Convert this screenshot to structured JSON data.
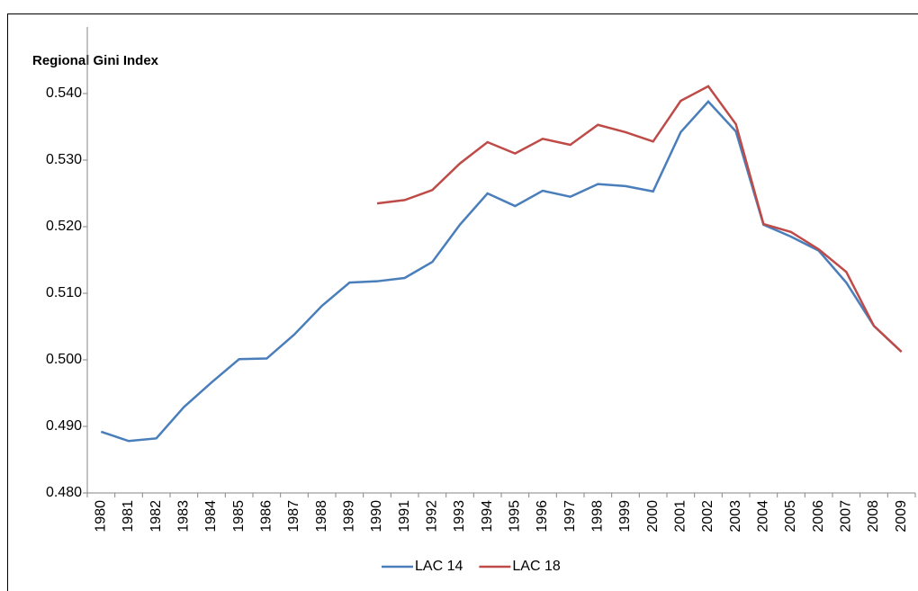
{
  "chart_data": {
    "type": "line",
    "title": "Regional Gini  Index",
    "categories": [
      "1980",
      "1981",
      "1982",
      "1983",
      "1984",
      "1985",
      "1986",
      "1987",
      "1988",
      "1989",
      "1990",
      "1991",
      "1992",
      "1993",
      "1994",
      "1995",
      "1996",
      "1997",
      "1998",
      "1999",
      "2000",
      "2001",
      "2002",
      "2003",
      "2004",
      "2005",
      "2006",
      "2007",
      "2008",
      "2009"
    ],
    "series": [
      {
        "name": "LAC 14",
        "color": "#4a7ebb",
        "values": [
          0.4892,
          0.4878,
          0.4882,
          0.4929,
          0.4966,
          0.5001,
          0.5002,
          0.5038,
          0.5081,
          0.5116,
          0.5118,
          0.5123,
          0.5147,
          0.5203,
          0.525,
          0.5231,
          0.5254,
          0.5245,
          0.5264,
          0.5261,
          0.5253,
          0.5342,
          0.5388,
          0.5343,
          0.5203,
          0.5185,
          0.5164,
          0.5116,
          0.5051,
          0.5012
        ]
      },
      {
        "name": "LAC 18",
        "color": "#be4b48",
        "values": [
          null,
          null,
          null,
          null,
          null,
          null,
          null,
          null,
          null,
          null,
          0.5235,
          0.524,
          0.5255,
          0.5295,
          0.5327,
          0.531,
          0.5332,
          0.5323,
          0.5353,
          0.5342,
          0.5328,
          0.5389,
          0.5411,
          0.5354,
          0.5204,
          0.5192,
          0.5166,
          0.5132,
          0.5051,
          0.5012
        ]
      }
    ],
    "ylim": [
      0.48,
      0.54
    ],
    "yticks": [
      {
        "value": 0.48,
        "label": "0.480"
      },
      {
        "value": 0.49,
        "label": "0.490"
      },
      {
        "value": 0.5,
        "label": "0.500"
      },
      {
        "value": 0.51,
        "label": "0.510"
      },
      {
        "value": 0.52,
        "label": "0.520"
      },
      {
        "value": 0.53,
        "label": "0.530"
      },
      {
        "value": 0.54,
        "label": "0.540"
      }
    ],
    "grid": false,
    "legend": "bottom"
  }
}
